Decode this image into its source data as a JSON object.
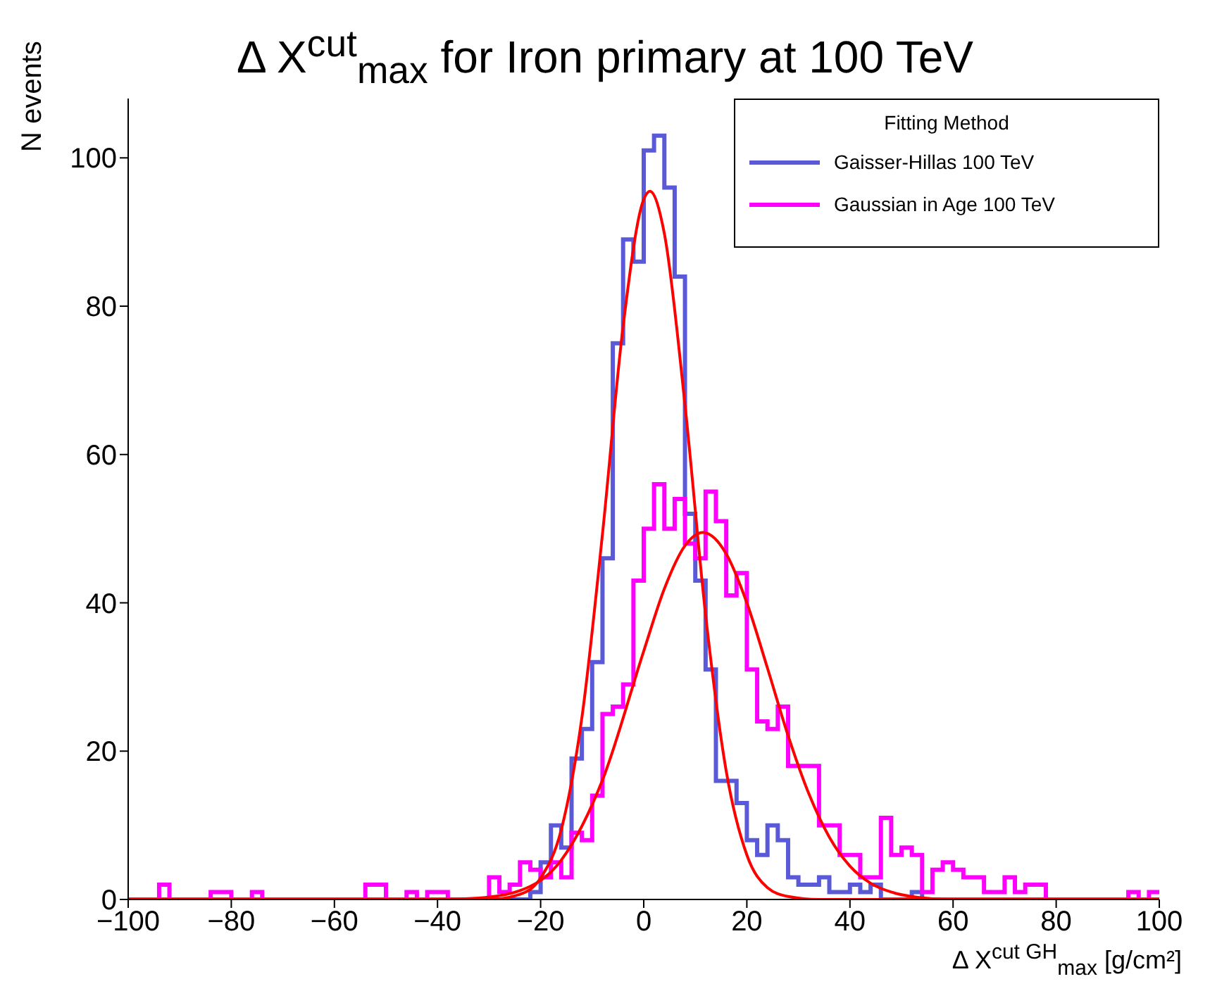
{
  "chart_data": {
    "type": "histogram",
    "title": "Δ X$^{cut}$$_{max}$ for Iron primary at 100 TeV",
    "xlabel": "Δ X$^{cut GH}$$_{max}$ [g/cm²]",
    "ylabel": "N events",
    "legend_title": "Fitting Method",
    "legend": "top right",
    "xlim": [
      -100,
      100
    ],
    "xticks": [
      -100,
      -80,
      -60,
      -40,
      -20,
      0,
      20,
      40,
      60,
      80,
      100
    ],
    "ylim": [
      0,
      108
    ],
    "yticks": [
      0,
      20,
      40,
      60,
      80,
      100
    ],
    "bins": [
      -100,
      -98,
      -96,
      -94,
      -92,
      -90,
      -88,
      -86,
      -84,
      -82,
      -80,
      -78,
      -76,
      -74,
      -72,
      -70,
      -68,
      -66,
      -64,
      -62,
      -60,
      -58,
      -56,
      -54,
      -52,
      -50,
      -48,
      -46,
      -44,
      -42,
      -40,
      -38,
      -36,
      -34,
      -32,
      -30,
      -28,
      -26,
      -24,
      -22,
      -20,
      -18,
      -16,
      -14,
      -12,
      -10,
      -8,
      -6,
      -4,
      -2,
      0,
      2,
      4,
      6,
      8,
      10,
      12,
      14,
      16,
      18,
      20,
      22,
      24,
      26,
      28,
      30,
      32,
      34,
      36,
      38,
      40,
      42,
      44,
      46,
      48,
      50,
      52,
      54,
      56,
      58,
      60,
      62,
      64,
      66,
      68,
      70,
      72,
      74,
      76,
      78,
      80,
      82,
      84,
      86,
      88,
      90,
      92,
      94,
      96,
      98,
      100
    ],
    "series": [
      {
        "name": "Gaisser-Hillas 100 TeV",
        "color": "#5a5ad8",
        "values": [
          0,
          0,
          0,
          0,
          0,
          0,
          0,
          0,
          0,
          0,
          0,
          0,
          0,
          0,
          0,
          0,
          0,
          0,
          0,
          0,
          0,
          0,
          0,
          0,
          0,
          0,
          0,
          0,
          0,
          0,
          0,
          0,
          0,
          0,
          0,
          0,
          0,
          0,
          0,
          1,
          5,
          10,
          7,
          19,
          23,
          32,
          46,
          75,
          89,
          86,
          101,
          103,
          96,
          84,
          52,
          43,
          31,
          16,
          16,
          13,
          8,
          6,
          10,
          8,
          3,
          2,
          2,
          3,
          1,
          1,
          2,
          1,
          2,
          0,
          0,
          0,
          1,
          0,
          0,
          0,
          0,
          0,
          0,
          0,
          0,
          0,
          0,
          0,
          0,
          0,
          0,
          0,
          0,
          0,
          0,
          0,
          0,
          0,
          0,
          0
        ]
      },
      {
        "name": "Gaussian in Age 100 TeV",
        "color": "#ff00ff",
        "values": [
          0,
          0,
          0,
          2,
          0,
          0,
          0,
          0,
          1,
          1,
          0,
          0,
          1,
          0,
          0,
          0,
          0,
          0,
          0,
          0,
          0,
          0,
          0,
          2,
          2,
          0,
          0,
          1,
          0,
          1,
          1,
          0,
          0,
          0,
          0,
          3,
          1,
          2,
          5,
          4,
          3,
          5,
          3,
          9,
          8,
          14,
          25,
          26,
          29,
          43,
          50,
          56,
          50,
          54,
          48,
          46,
          55,
          51,
          41,
          44,
          31,
          24,
          23,
          26,
          18,
          18,
          18,
          10,
          10,
          6,
          6,
          3,
          3,
          11,
          6,
          7,
          6,
          1,
          4,
          5,
          4,
          3,
          3,
          1,
          1,
          3,
          1,
          2,
          2,
          0,
          0,
          0,
          0,
          0,
          0,
          0,
          0,
          1,
          0,
          1
        ]
      },
      {
        "type": "line",
        "color": "#ff0000",
        "x": [
          -100,
          -30,
          -24,
          -20,
          -16,
          -12,
          -8,
          -4,
          0,
          1.2,
          4,
          8,
          12,
          16,
          20,
          24,
          28,
          34,
          100
        ],
        "values": [
          0,
          0,
          0.7,
          2.9,
          9.4,
          24.5,
          49.3,
          77.3,
          94.4,
          95.5,
          89.8,
          66.7,
          38.4,
          17.3,
          6,
          1.6,
          0.4,
          0,
          0
        ]
      },
      {
        "type": "line",
        "color": "#ff0000",
        "x": [
          -100,
          -40,
          -32,
          -24,
          -16,
          -8,
          0,
          4,
          8,
          11.5,
          16,
          20,
          24,
          28,
          32,
          36,
          40,
          44,
          48,
          52,
          56,
          60,
          100
        ],
        "values": [
          0,
          0,
          0.2,
          1.2,
          5.3,
          16.1,
          33.5,
          41.9,
          47.7,
          49.5,
          46.6,
          40,
          31.2,
          22.1,
          14.3,
          8.4,
          4.5,
          2.2,
          1,
          0.4,
          0.1,
          0,
          0
        ]
      }
    ]
  }
}
